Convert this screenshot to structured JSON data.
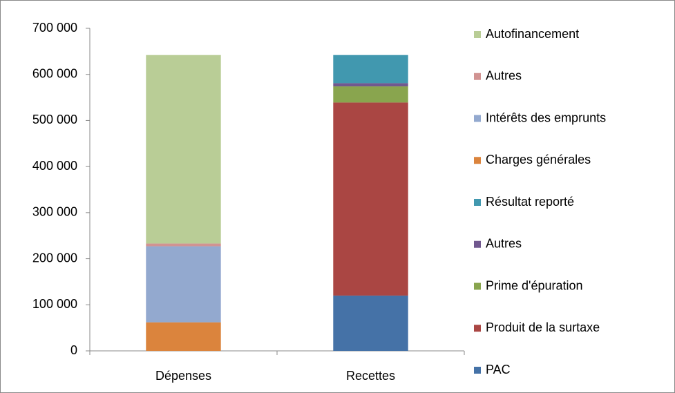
{
  "chart_data": {
    "type": "stacked_bar",
    "categories": [
      "Dépenses",
      "Recettes"
    ],
    "series": [
      {
        "name": "PAC",
        "color": "#4572a7",
        "values": [
          0,
          120000
        ]
      },
      {
        "name": "Produit de la surtaxe",
        "color": "#aa4643",
        "values": [
          0,
          419000
        ]
      },
      {
        "name": "Prime d'épuration",
        "color": "#89a54e",
        "values": [
          0,
          35000
        ]
      },
      {
        "name": "Autres",
        "color": "#71588f",
        "values": [
          0,
          7000
        ]
      },
      {
        "name": "Résultat reporté",
        "color": "#4198af",
        "values": [
          0,
          61000
        ]
      },
      {
        "name": "Charges générales",
        "color": "#db843d",
        "values": [
          62000,
          0
        ]
      },
      {
        "name": "Intérêts des emprunts",
        "color": "#93a9cf",
        "values": [
          165000,
          0
        ]
      },
      {
        "name": "Autres",
        "color": "#d19392",
        "values": [
          6000,
          0
        ]
      },
      {
        "name": "Autofinancement",
        "color": "#b9cd96",
        "values": [
          409000,
          0
        ]
      }
    ],
    "ylim": [
      0,
      700000
    ],
    "yticks": [
      0,
      {
        "value": 100000,
        "label": "100 000"
      },
      {
        "value": 200000,
        "label": "200 000"
      },
      {
        "value": 300000,
        "label": "300 000"
      },
      {
        "value": 400000,
        "label": "400 000"
      },
      {
        "value": 500000,
        "label": "500 000"
      },
      {
        "value": 600000,
        "label": "600 000"
      },
      {
        "value": 700000,
        "label": "700 000"
      }
    ],
    "grid": false,
    "legend": "right"
  }
}
